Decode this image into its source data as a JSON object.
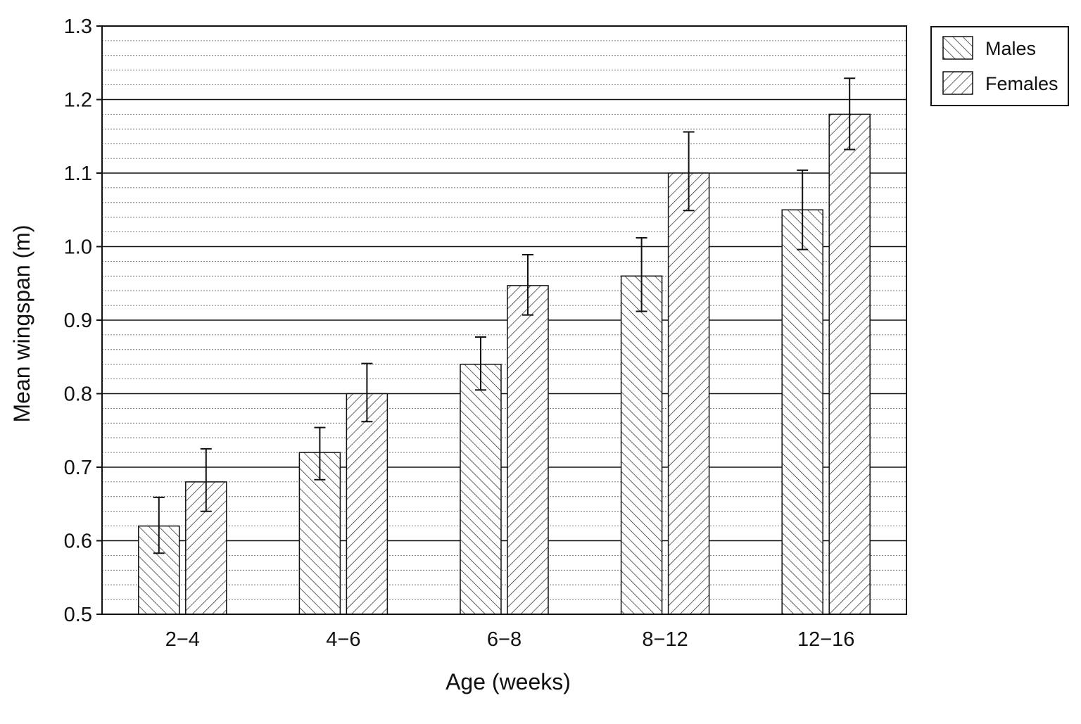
{
  "chart_data": {
    "type": "bar",
    "title": "",
    "xlabel": "Age (weeks)",
    "ylabel": "Mean wingspan (m)",
    "categories": [
      "2−4",
      "4−6",
      "6−8",
      "8−12",
      "12−16"
    ],
    "series": [
      {
        "name": "Males",
        "pattern": "hatch-forward",
        "values": [
          0.62,
          0.72,
          0.84,
          0.96,
          1.05
        ],
        "error_low": [
          0.583,
          0.683,
          0.805,
          0.912,
          0.996
        ],
        "error_high": [
          0.659,
          0.754,
          0.877,
          1.012,
          1.104
        ]
      },
      {
        "name": "Females",
        "pattern": "hatch-backward",
        "values": [
          0.68,
          0.8,
          0.947,
          1.1,
          1.18
        ],
        "error_low": [
          0.64,
          0.762,
          0.907,
          1.049,
          1.132
        ],
        "error_high": [
          0.725,
          0.841,
          0.989,
          1.156,
          1.229
        ]
      }
    ],
    "ylim": [
      0.5,
      1.3
    ],
    "yticks": [
      "0.5",
      "0.6",
      "0.7",
      "0.8",
      "0.9",
      "1.0",
      "1.1",
      "1.2",
      "1.3"
    ],
    "major_gridline_step": 0.1,
    "minor_gridline_step": 0.02,
    "grid": true,
    "legend_position": "top-right outside plot",
    "colors": {
      "bar_fill": "#ffffff",
      "hatch": "#222222",
      "grid_major": "#111111",
      "grid_minor": "#555555"
    }
  }
}
